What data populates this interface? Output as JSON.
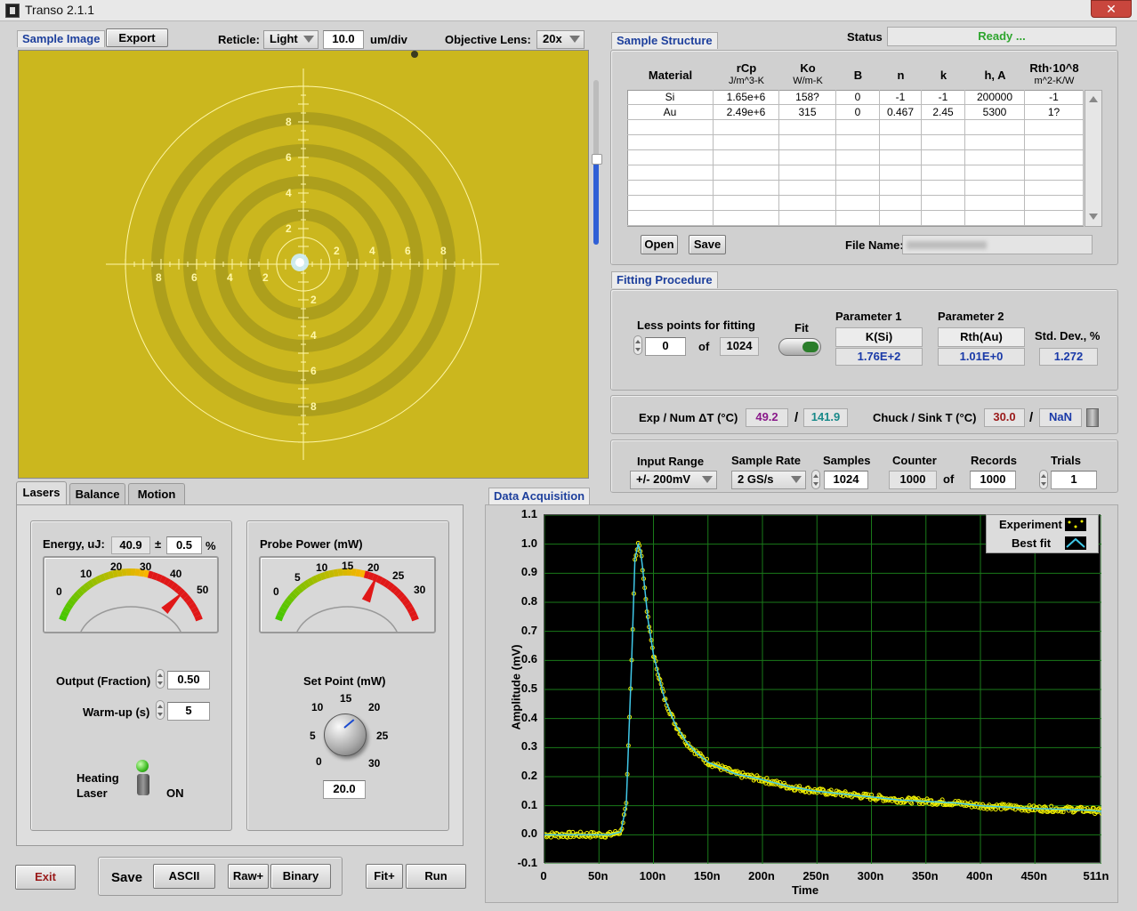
{
  "window": {
    "title": "Transo 2.1.1",
    "close_symbol": "✕"
  },
  "sample_image": {
    "tab_label": "Sample Image",
    "export_label": "Export",
    "reticle_label": "Reticle:",
    "reticle_value": "Light",
    "scale_value": "10.0",
    "scale_unit": "um/div",
    "objective_label": "Objective Lens:",
    "objective_value": "20x",
    "reticle_ticks": [
      "2",
      "4",
      "6",
      "8"
    ]
  },
  "status": {
    "label": "Status",
    "value": "Ready ..."
  },
  "sample_structure": {
    "label": "Sample Structure",
    "columns": [
      {
        "name": "Material",
        "unit": ""
      },
      {
        "name": "rCp",
        "unit": "J/m^3-K"
      },
      {
        "name": "Ko",
        "unit": "W/m-K"
      },
      {
        "name": "B",
        "unit": ""
      },
      {
        "name": "n",
        "unit": ""
      },
      {
        "name": "k",
        "unit": ""
      },
      {
        "name": "h, A",
        "unit": ""
      },
      {
        "name": "Rth·10^8",
        "unit": "m^2-K/W"
      }
    ],
    "rows": [
      [
        "Si",
        "1.65e+6",
        "158?",
        "0",
        "-1",
        "-1",
        "200000",
        "-1"
      ],
      [
        "Au",
        "2.49e+6",
        "315",
        "0",
        "0.467",
        "2.45",
        "5300",
        "1?"
      ]
    ],
    "open_label": "Open",
    "save_label": "Save",
    "file_name_label": "File Name:"
  },
  "fitting": {
    "label": "Fitting Procedure",
    "less_points_label": "Less points for fitting",
    "less_points_value": "0",
    "of_label": "of",
    "total_points": "1024",
    "fit_label": "Fit",
    "param1_label": "Parameter 1",
    "param1_name": "K(Si)",
    "param1_value": "1.76E+2",
    "param2_label": "Parameter 2",
    "param2_name": "Rth(Au)",
    "param2_value": "1.01E+0",
    "stddev_label": "Std. Dev., %",
    "stddev_value": "1.272"
  },
  "temps": {
    "exp_label": "Exp / Num ΔT (°C)",
    "exp_value": "49.2",
    "slash": "/",
    "num_value": "141.9",
    "chuck_label": "Chuck / Sink T (°C)",
    "chuck_value": "30.0",
    "sink_value": "NaN"
  },
  "acquisition": {
    "input_range_label": "Input Range",
    "input_range_value": "+/- 200mV",
    "sample_rate_label": "Sample Rate",
    "sample_rate_value": "2 GS/s",
    "samples_label": "Samples",
    "samples_value": "1024",
    "counter_label": "Counter",
    "counter_value": "1000",
    "of_label": "of",
    "records_label": "Records",
    "records_value": "1000",
    "trials_label": "Trials",
    "trials_value": "1",
    "section_label": "Data Acquisition"
  },
  "tabs": [
    "Lasers",
    "Balance",
    "Motion"
  ],
  "lasers": {
    "energy_label": "Energy, uJ:",
    "energy_value": "40.9",
    "pm": "±",
    "tolerance_value": "0.5",
    "percent": "%",
    "energy_gauge": {
      "ticks": [
        "0",
        "10",
        "20",
        "30",
        "40",
        "50"
      ],
      "value": 40.9,
      "max": 50
    },
    "probe_label": "Probe Power (mW)",
    "probe_gauge": {
      "ticks": [
        "0",
        "5",
        "10",
        "15",
        "20",
        "25",
        "30"
      ],
      "value": 20,
      "max": 30
    },
    "output_label": "Output (Fraction)",
    "output_value": "0.50",
    "warmup_label": "Warm-up (s)",
    "warmup_value": "5",
    "heating_label_1": "Heating",
    "heating_label_2": "Laser",
    "heating_state": "ON",
    "setpoint_label": "Set Point (mW)",
    "setpoint_ticks": [
      "0",
      "5",
      "10",
      "15",
      "20",
      "25",
      "30"
    ],
    "setpoint_value": "20.0"
  },
  "bottom_bar": {
    "exit_label": "Exit",
    "save_label": "Save",
    "ascii_label": "ASCII",
    "raw_label": "Raw+",
    "binary_label": "Binary",
    "fitplus_label": "Fit+",
    "run_label": "Run"
  },
  "chart_data": {
    "type": "line",
    "xlabel": "Time",
    "ylabel": "Amplitude (mV)",
    "xlim": [
      0,
      511
    ],
    "ylim": [
      -0.1,
      1.1
    ],
    "x_ticks": [
      "0",
      "50n",
      "100n",
      "150n",
      "200n",
      "250n",
      "300n",
      "350n",
      "400n",
      "450n",
      "511n"
    ],
    "y_ticks": [
      "1.1",
      "1.0",
      "0.9",
      "0.8",
      "0.7",
      "0.6",
      "0.5",
      "0.4",
      "0.3",
      "0.2",
      "0.1",
      "0.0",
      "-0.1"
    ],
    "legend": [
      "Experiment",
      "Best fit"
    ],
    "colors": {
      "experiment": "#f0f000",
      "fit": "#40c8e8",
      "grid": "#1a7a1a"
    },
    "series": [
      {
        "name": "Experiment",
        "x": [
          0,
          20,
          40,
          60,
          70,
          75,
          80,
          83,
          86,
          88,
          90,
          95,
          100,
          110,
          120,
          130,
          140,
          150,
          175,
          200,
          225,
          250,
          275,
          300,
          325,
          350,
          375,
          400,
          425,
          450,
          475,
          500,
          511
        ],
        "y": [
          0.0,
          0.0,
          0.0,
          0.0,
          0.01,
          0.1,
          0.6,
          0.95,
          1.0,
          0.98,
          0.92,
          0.74,
          0.62,
          0.47,
          0.38,
          0.32,
          0.28,
          0.25,
          0.21,
          0.19,
          0.165,
          0.15,
          0.14,
          0.13,
          0.12,
          0.115,
          0.11,
          0.1,
          0.095,
          0.09,
          0.088,
          0.085,
          0.08
        ]
      },
      {
        "name": "Best fit",
        "x": [
          0,
          20,
          40,
          60,
          70,
          75,
          80,
          83,
          86,
          88,
          90,
          95,
          100,
          110,
          120,
          130,
          140,
          150,
          175,
          200,
          225,
          250,
          275,
          300,
          325,
          350,
          375,
          400,
          425,
          450,
          475,
          500,
          511
        ],
        "y": [
          0.0,
          0.0,
          0.0,
          0.0,
          0.01,
          0.1,
          0.6,
          0.95,
          1.0,
          0.98,
          0.92,
          0.74,
          0.62,
          0.47,
          0.38,
          0.32,
          0.28,
          0.25,
          0.21,
          0.19,
          0.165,
          0.15,
          0.14,
          0.13,
          0.12,
          0.115,
          0.11,
          0.1,
          0.095,
          0.09,
          0.088,
          0.085,
          0.08
        ]
      }
    ]
  }
}
